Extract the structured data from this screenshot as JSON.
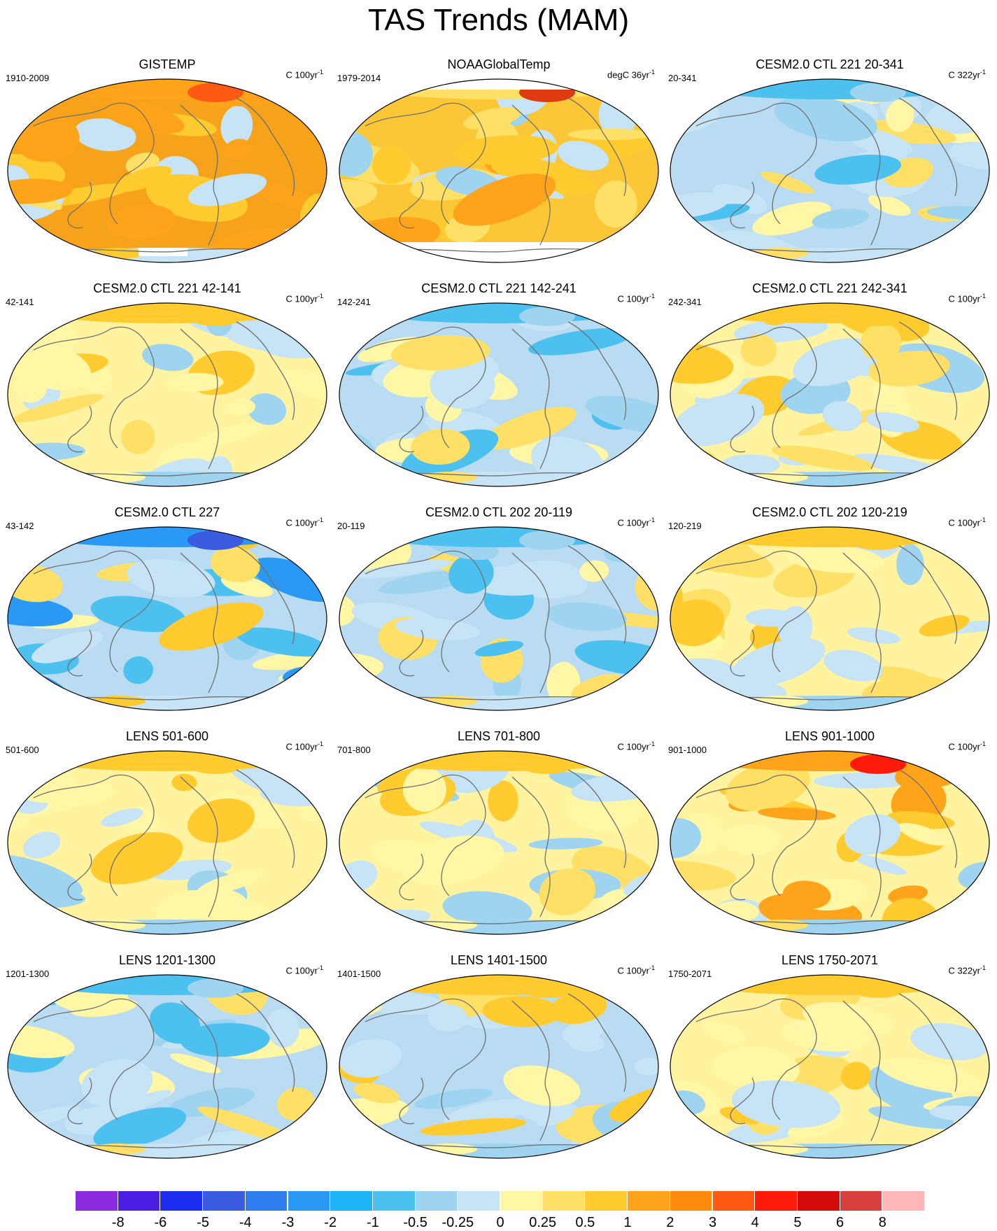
{
  "title": "TAS Trends (MAM)",
  "panels": [
    {
      "title": "GISTEMP",
      "left": "1910-2009",
      "unit": "C 100yr",
      "sup": "-1",
      "base": "#f7a21b",
      "style": "warm"
    },
    {
      "title": "NOAAGlobalTemp",
      "left": "1979-2014",
      "unit": "degC 36yr",
      "sup": "-1",
      "base": "#fcc737",
      "style": "noaa"
    },
    {
      "title": "CESM2.0 CTL 221 20-341",
      "left": "20-341",
      "unit": "C 322yr",
      "sup": "-1",
      "base": "#b9dcf2",
      "style": "cool"
    },
    {
      "title": "CESM2.0 CTL 221 42-141",
      "left": "42-141",
      "unit": "C 100yr",
      "sup": "-1",
      "base": "#fff3a0",
      "style": "mixed"
    },
    {
      "title": "CESM2.0 CTL 221 142-241",
      "left": "142-241",
      "unit": "C 100yr",
      "sup": "-1",
      "base": "#b9dcf2",
      "style": "cool"
    },
    {
      "title": "CESM2.0 CTL 221 242-341",
      "left": "242-341",
      "unit": "C 100yr",
      "sup": "-1",
      "base": "#fff3a0",
      "style": "mixed"
    },
    {
      "title": "CESM2.0 CTL 227",
      "left": "43-142",
      "unit": "C 100yr",
      "sup": "-1",
      "base": "#b9dcf2",
      "style": "coldnorth"
    },
    {
      "title": "CESM2.0 CTL 202 20-119",
      "left": "20-119",
      "unit": "C 100yr",
      "sup": "-1",
      "base": "#b9dcf2",
      "style": "cool"
    },
    {
      "title": "CESM2.0 CTL 202 120-219",
      "left": "120-219",
      "unit": "C 100yr",
      "sup": "-1",
      "base": "#fff3a0",
      "style": "mixed"
    },
    {
      "title": "LENS 501-600",
      "left": "501-600",
      "unit": "C 100yr",
      "sup": "-1",
      "base": "#fff3a0",
      "style": "mixed"
    },
    {
      "title": "LENS 701-800",
      "left": "701-800",
      "unit": "C 100yr",
      "sup": "-1",
      "base": "#fff3a0",
      "style": "mixed"
    },
    {
      "title": "LENS 901-1000",
      "left": "901-1000",
      "unit": "C 100yr",
      "sup": "-1",
      "base": "#fff3a0",
      "style": "hotnorth"
    },
    {
      "title": "LENS 1201-1300",
      "left": "1201-1300",
      "unit": "C 100yr",
      "sup": "-1",
      "base": "#b9dcf2",
      "style": "cool"
    },
    {
      "title": "LENS 1401-1500",
      "left": "1401-1500",
      "unit": "C 100yr",
      "sup": "-1",
      "base": "#b9dcf2",
      "style": "mixed"
    },
    {
      "title": "LENS 1750-2071",
      "left": "1750-2071",
      "unit": "C 322yr",
      "sup": "-1",
      "base": "#fff3a0",
      "style": "mixed"
    }
  ],
  "colorbar": {
    "colors": [
      "#8a2be2",
      "#4b1ee6",
      "#1e2ef0",
      "#3a5ce0",
      "#2f7ef0",
      "#2a98f5",
      "#1cb4f7",
      "#4cc0ef",
      "#9fd4f0",
      "#c6e4f5",
      "#fff6a6",
      "#ffe066",
      "#ffcb2e",
      "#ffa41a",
      "#ff8a0d",
      "#ff5a14",
      "#ff1a0a",
      "#d40a0a",
      "#d84040",
      "#ffb6b6"
    ],
    "labels": [
      "-8",
      "-6",
      "-5",
      "-4",
      "-3",
      "-2",
      "-1",
      "-0.5",
      "-0.25",
      "0",
      "0.25",
      "0.5",
      "1",
      "2",
      "3",
      "4",
      "5",
      "6",
      "8"
    ]
  }
}
